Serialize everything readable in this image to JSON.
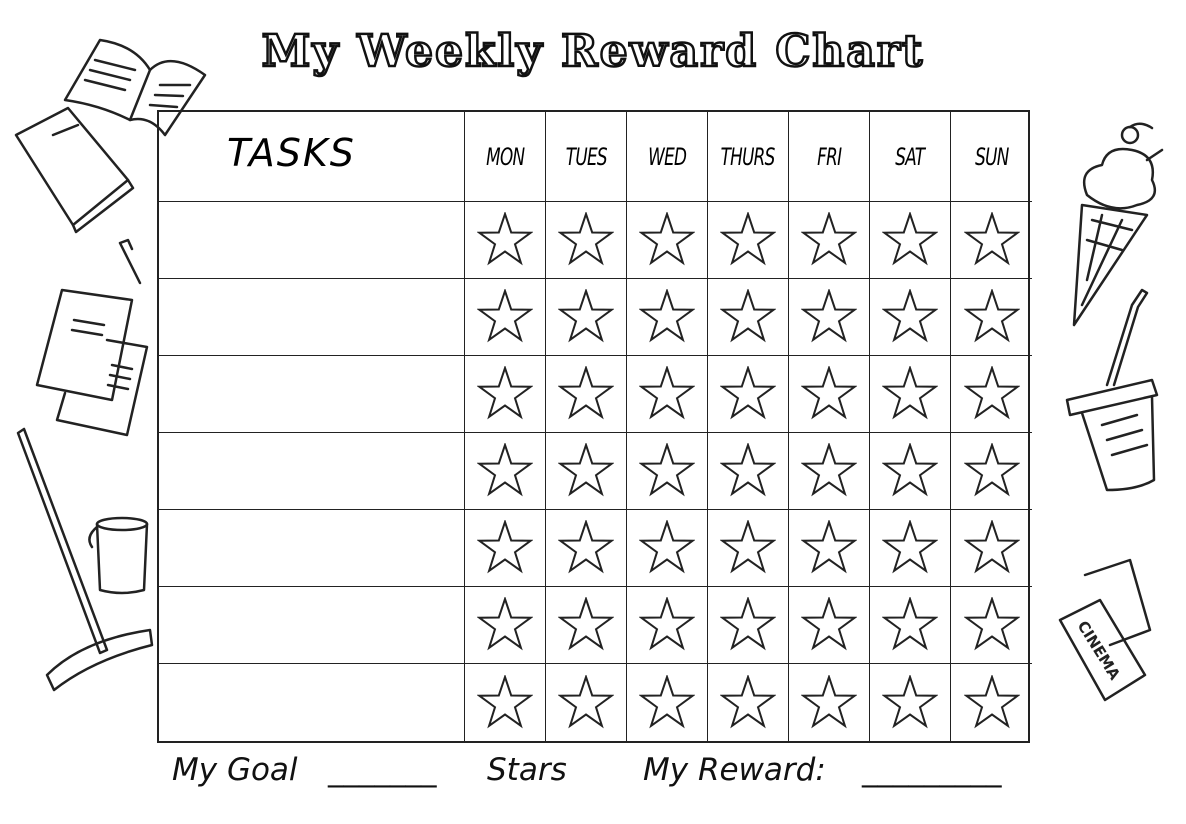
{
  "title": "My Weekly Reward Chart",
  "table": {
    "tasks_header": "TASKS",
    "days": [
      "MON",
      "TUES",
      "WED",
      "THURS",
      "FRI",
      "SAT",
      "SUN"
    ],
    "row_count": 7,
    "cell_icon": "star-outline-icon"
  },
  "footer": {
    "goal_label": "My Goal",
    "goal_blank": "_______",
    "stars_label": "Stars",
    "reward_label": "My Reward:",
    "reward_blank": "_________"
  },
  "decorations": {
    "left": [
      "open-book-icon",
      "closed-book-icon",
      "pen-icon",
      "papers-icon",
      "mop-icon",
      "bucket-icon"
    ],
    "right": [
      "ice-cream-icon",
      "drink-cup-icon",
      "cinema-ticket-icon"
    ],
    "cinema_ticket_text": "CINEMA"
  }
}
